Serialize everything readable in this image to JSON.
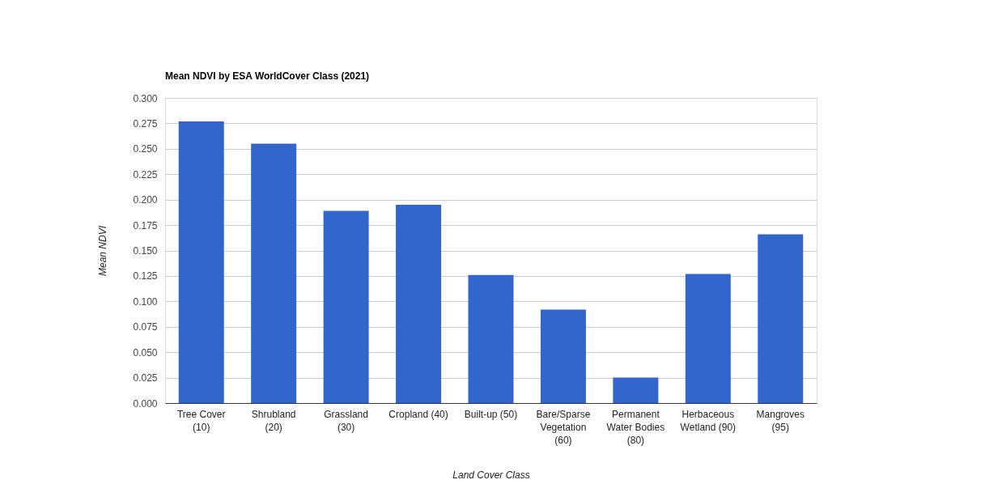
{
  "chart_data": {
    "type": "bar",
    "title": "Mean NDVI by ESA WorldCover Class (2021)",
    "xlabel": "Land Cover Class",
    "ylabel": "Mean NDVI",
    "categories": [
      "Tree Cover (10)",
      "Shrubland (20)",
      "Grassland (30)",
      "Cropland (40)",
      "Built-up (50)",
      "Bare/Sparse Vegetation (60)",
      "Permanent Water Bodies (80)",
      "Herbaceous Wetland (90)",
      "Mangroves (95)"
    ],
    "values": [
      0.277,
      0.255,
      0.189,
      0.195,
      0.126,
      0.092,
      0.025,
      0.127,
      0.166
    ],
    "color": "#3366cc",
    "ylim": [
      0,
      0.3
    ],
    "yticks": [
      {
        "value": 0,
        "label": "0.000"
      },
      {
        "value": 0.025,
        "label": "0.025"
      },
      {
        "value": 0.05,
        "label": "0.050"
      },
      {
        "value": 0.075,
        "label": "0.075"
      },
      {
        "value": 0.1,
        "label": "0.100"
      },
      {
        "value": 0.125,
        "label": "0.125"
      },
      {
        "value": 0.15,
        "label": "0.150"
      },
      {
        "value": 0.175,
        "label": "0.175"
      },
      {
        "value": 0.2,
        "label": "0.200"
      },
      {
        "value": 0.225,
        "label": "0.225"
      },
      {
        "value": 0.25,
        "label": "0.250"
      },
      {
        "value": 0.275,
        "label": "0.275"
      },
      {
        "value": 0.3,
        "label": "0.300"
      }
    ],
    "grid": "y"
  }
}
